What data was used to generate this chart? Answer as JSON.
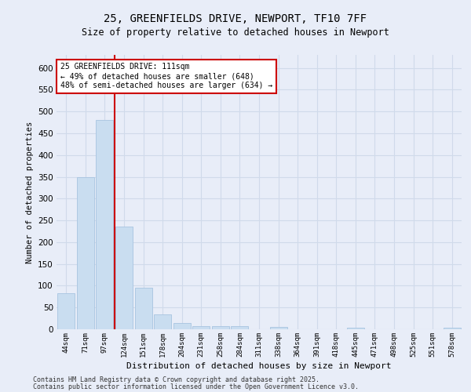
{
  "title1": "25, GREENFIELDS DRIVE, NEWPORT, TF10 7FF",
  "title2": "Size of property relative to detached houses in Newport",
  "xlabel": "Distribution of detached houses by size in Newport",
  "ylabel": "Number of detached properties",
  "categories": [
    "44sqm",
    "71sqm",
    "97sqm",
    "124sqm",
    "151sqm",
    "178sqm",
    "204sqm",
    "231sqm",
    "258sqm",
    "284sqm",
    "311sqm",
    "338sqm",
    "364sqm",
    "391sqm",
    "418sqm",
    "445sqm",
    "471sqm",
    "498sqm",
    "525sqm",
    "551sqm",
    "578sqm"
  ],
  "values": [
    83,
    350,
    480,
    235,
    95,
    35,
    15,
    8,
    8,
    8,
    0,
    5,
    0,
    0,
    0,
    4,
    0,
    0,
    0,
    0,
    4
  ],
  "bar_color": "#c9ddf0",
  "bar_edge_color": "#a8c4e0",
  "grid_color": "#d0daea",
  "background_color": "#e8edf8",
  "vline_x": 2.5,
  "vline_color": "#cc0000",
  "annotation_text": "25 GREENFIELDS DRIVE: 111sqm\n← 49% of detached houses are smaller (648)\n48% of semi-detached houses are larger (634) →",
  "annotation_box_color": "white",
  "annotation_box_edge_color": "#cc0000",
  "footer1": "Contains HM Land Registry data © Crown copyright and database right 2025.",
  "footer2": "Contains public sector information licensed under the Open Government Licence v3.0.",
  "ylim": [
    0,
    630
  ],
  "yticks": [
    0,
    50,
    100,
    150,
    200,
    250,
    300,
    350,
    400,
    450,
    500,
    550,
    600
  ]
}
